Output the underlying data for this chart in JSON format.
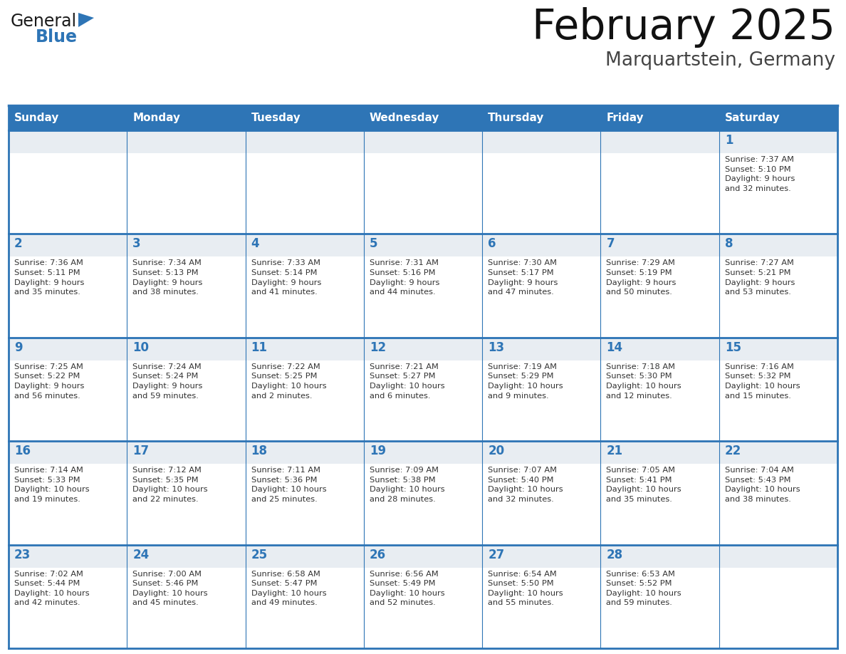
{
  "title": "February 2025",
  "subtitle": "Marquartstein, Germany",
  "header_color": "#2E75B6",
  "header_text_color": "#FFFFFF",
  "grid_line_color": "#2E75B6",
  "row_separator_color": "#2E75B6",
  "cell_separator_color": "#AAAAAA",
  "day_number_color": "#2E75B6",
  "cell_text_color": "#333333",
  "background_color": "#FFFFFF",
  "row_top_bg": "#E8EDF2",
  "row_bottom_bg": "#FFFFFF",
  "days_of_week": [
    "Sunday",
    "Monday",
    "Tuesday",
    "Wednesday",
    "Thursday",
    "Friday",
    "Saturday"
  ],
  "logo_color_general": "#1A1A1A",
  "logo_color_blue": "#2E75B6",
  "calendar_data": [
    [
      {
        "day": null,
        "info": null
      },
      {
        "day": null,
        "info": null
      },
      {
        "day": null,
        "info": null
      },
      {
        "day": null,
        "info": null
      },
      {
        "day": null,
        "info": null
      },
      {
        "day": null,
        "info": null
      },
      {
        "day": 1,
        "info": "Sunrise: 7:37 AM\nSunset: 5:10 PM\nDaylight: 9 hours\nand 32 minutes."
      }
    ],
    [
      {
        "day": 2,
        "info": "Sunrise: 7:36 AM\nSunset: 5:11 PM\nDaylight: 9 hours\nand 35 minutes."
      },
      {
        "day": 3,
        "info": "Sunrise: 7:34 AM\nSunset: 5:13 PM\nDaylight: 9 hours\nand 38 minutes."
      },
      {
        "day": 4,
        "info": "Sunrise: 7:33 AM\nSunset: 5:14 PM\nDaylight: 9 hours\nand 41 minutes."
      },
      {
        "day": 5,
        "info": "Sunrise: 7:31 AM\nSunset: 5:16 PM\nDaylight: 9 hours\nand 44 minutes."
      },
      {
        "day": 6,
        "info": "Sunrise: 7:30 AM\nSunset: 5:17 PM\nDaylight: 9 hours\nand 47 minutes."
      },
      {
        "day": 7,
        "info": "Sunrise: 7:29 AM\nSunset: 5:19 PM\nDaylight: 9 hours\nand 50 minutes."
      },
      {
        "day": 8,
        "info": "Sunrise: 7:27 AM\nSunset: 5:21 PM\nDaylight: 9 hours\nand 53 minutes."
      }
    ],
    [
      {
        "day": 9,
        "info": "Sunrise: 7:25 AM\nSunset: 5:22 PM\nDaylight: 9 hours\nand 56 minutes."
      },
      {
        "day": 10,
        "info": "Sunrise: 7:24 AM\nSunset: 5:24 PM\nDaylight: 9 hours\nand 59 minutes."
      },
      {
        "day": 11,
        "info": "Sunrise: 7:22 AM\nSunset: 5:25 PM\nDaylight: 10 hours\nand 2 minutes."
      },
      {
        "day": 12,
        "info": "Sunrise: 7:21 AM\nSunset: 5:27 PM\nDaylight: 10 hours\nand 6 minutes."
      },
      {
        "day": 13,
        "info": "Sunrise: 7:19 AM\nSunset: 5:29 PM\nDaylight: 10 hours\nand 9 minutes."
      },
      {
        "day": 14,
        "info": "Sunrise: 7:18 AM\nSunset: 5:30 PM\nDaylight: 10 hours\nand 12 minutes."
      },
      {
        "day": 15,
        "info": "Sunrise: 7:16 AM\nSunset: 5:32 PM\nDaylight: 10 hours\nand 15 minutes."
      }
    ],
    [
      {
        "day": 16,
        "info": "Sunrise: 7:14 AM\nSunset: 5:33 PM\nDaylight: 10 hours\nand 19 minutes."
      },
      {
        "day": 17,
        "info": "Sunrise: 7:12 AM\nSunset: 5:35 PM\nDaylight: 10 hours\nand 22 minutes."
      },
      {
        "day": 18,
        "info": "Sunrise: 7:11 AM\nSunset: 5:36 PM\nDaylight: 10 hours\nand 25 minutes."
      },
      {
        "day": 19,
        "info": "Sunrise: 7:09 AM\nSunset: 5:38 PM\nDaylight: 10 hours\nand 28 minutes."
      },
      {
        "day": 20,
        "info": "Sunrise: 7:07 AM\nSunset: 5:40 PM\nDaylight: 10 hours\nand 32 minutes."
      },
      {
        "day": 21,
        "info": "Sunrise: 7:05 AM\nSunset: 5:41 PM\nDaylight: 10 hours\nand 35 minutes."
      },
      {
        "day": 22,
        "info": "Sunrise: 7:04 AM\nSunset: 5:43 PM\nDaylight: 10 hours\nand 38 minutes."
      }
    ],
    [
      {
        "day": 23,
        "info": "Sunrise: 7:02 AM\nSunset: 5:44 PM\nDaylight: 10 hours\nand 42 minutes."
      },
      {
        "day": 24,
        "info": "Sunrise: 7:00 AM\nSunset: 5:46 PM\nDaylight: 10 hours\nand 45 minutes."
      },
      {
        "day": 25,
        "info": "Sunrise: 6:58 AM\nSunset: 5:47 PM\nDaylight: 10 hours\nand 49 minutes."
      },
      {
        "day": 26,
        "info": "Sunrise: 6:56 AM\nSunset: 5:49 PM\nDaylight: 10 hours\nand 52 minutes."
      },
      {
        "day": 27,
        "info": "Sunrise: 6:54 AM\nSunset: 5:50 PM\nDaylight: 10 hours\nand 55 minutes."
      },
      {
        "day": 28,
        "info": "Sunrise: 6:53 AM\nSunset: 5:52 PM\nDaylight: 10 hours\nand 59 minutes."
      },
      {
        "day": null,
        "info": null
      }
    ]
  ]
}
